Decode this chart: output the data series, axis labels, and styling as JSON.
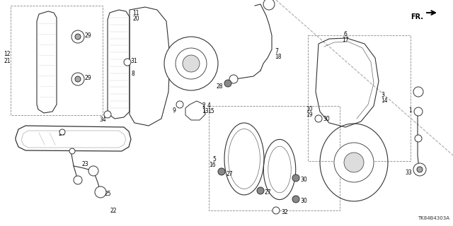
{
  "bg_color": "#ffffff",
  "diagram_code": "TK84B4303A",
  "fr_label": "FR.",
  "fig_width": 6.4,
  "fig_height": 3.2,
  "dpi": 100,
  "lc": "#333333",
  "lc2": "#666666",
  "lc3": "#999999"
}
